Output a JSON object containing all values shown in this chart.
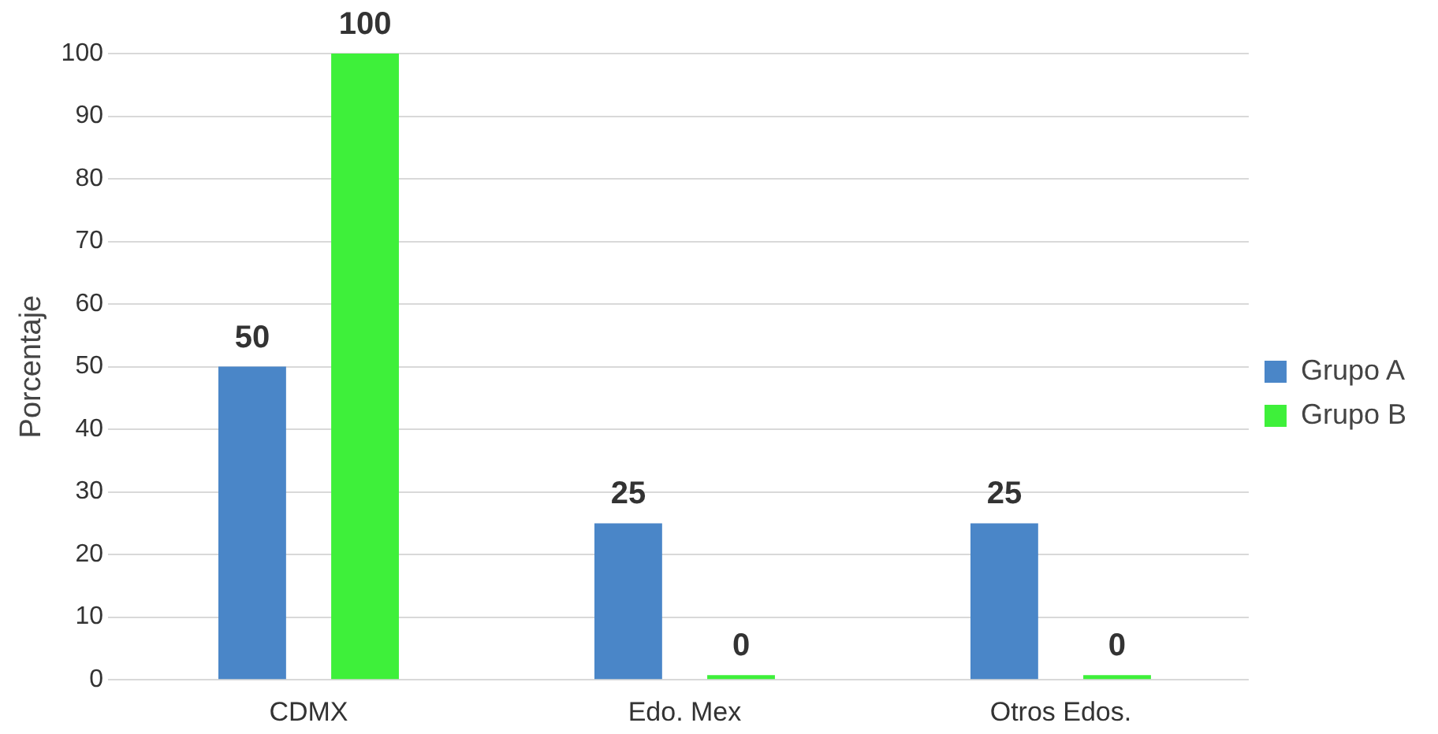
{
  "chart_data": {
    "type": "bar",
    "ylabel": "Porcentaje",
    "categories": [
      "CDMX",
      "Edo. Mex",
      "Otros Edos."
    ],
    "series": [
      {
        "name": "Grupo A",
        "color": "#4a86c8",
        "values": [
          50,
          25,
          25
        ]
      },
      {
        "name": "Grupo B",
        "color": "#3ef03a",
        "values": [
          100,
          0,
          0
        ]
      }
    ],
    "ylim": [
      0,
      100
    ],
    "yticks": [
      0,
      10,
      20,
      30,
      40,
      50,
      60,
      70,
      80,
      90,
      100
    ],
    "grid": "y",
    "legend": "right",
    "data_labels": true
  }
}
